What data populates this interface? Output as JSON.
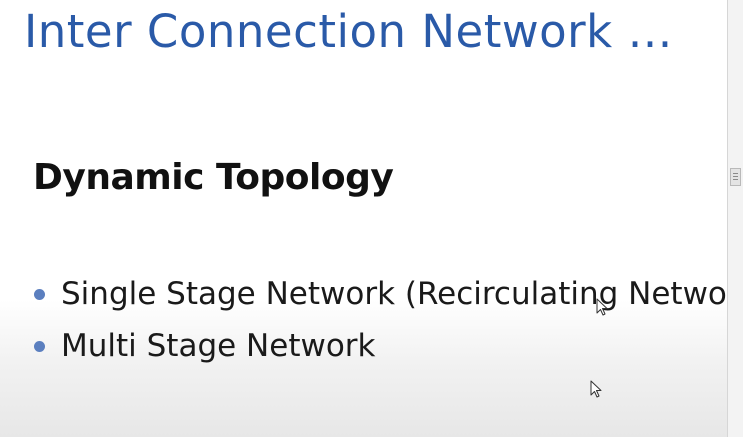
{
  "slide": {
    "title": "Inter Connection Network …",
    "subtitle": "Dynamic Topology",
    "bullets": [
      "Single Stage Network (Recirculating Network",
      "Multi Stage Network"
    ]
  },
  "colors": {
    "title": "#2a5aa8",
    "bullet": "#5b7fbf",
    "text": "#1a1a1a"
  },
  "icons": {
    "cursor": "arrow-cursor-icon",
    "scroll_grip": "grip-lines-icon"
  }
}
